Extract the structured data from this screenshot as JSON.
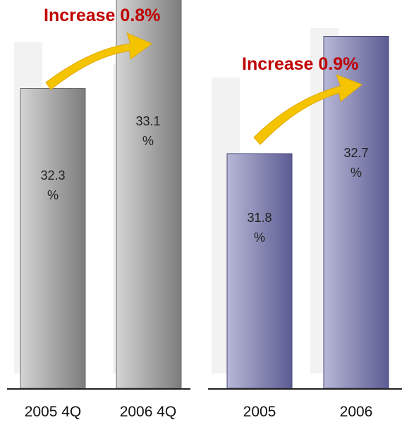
{
  "chart_data": [
    {
      "type": "bar",
      "categories": [
        "2005 4Q",
        "2006 4Q"
      ],
      "values": [
        32.3,
        33.1
      ],
      "value_labels": [
        [
          "32.3",
          "%"
        ],
        [
          "33.1",
          "%"
        ]
      ],
      "annotation": "Increase 0.8%",
      "bar_color": "#a9a9a9",
      "ylim": [
        30,
        34
      ]
    },
    {
      "type": "bar",
      "categories": [
        "2005",
        "2006"
      ],
      "values": [
        31.8,
        32.7
      ],
      "value_labels": [
        [
          "31.8",
          "%"
        ],
        [
          "32.7",
          "%"
        ]
      ],
      "annotation": "Increase 0.9%",
      "bar_color": "#8a8ab8",
      "ylim": [
        30,
        34
      ]
    }
  ],
  "colors": {
    "annotation_text": "#c00000",
    "arrow": "#f5c400",
    "gray_bar_light": "#d4d4d4",
    "gray_bar_dark": "#7c7c7c",
    "blue_bar_light": "#b7b7d6",
    "blue_bar_dark": "#5c5c94"
  },
  "icons": [
    "growth-arrow-icon",
    "growth-arrow-icon"
  ]
}
